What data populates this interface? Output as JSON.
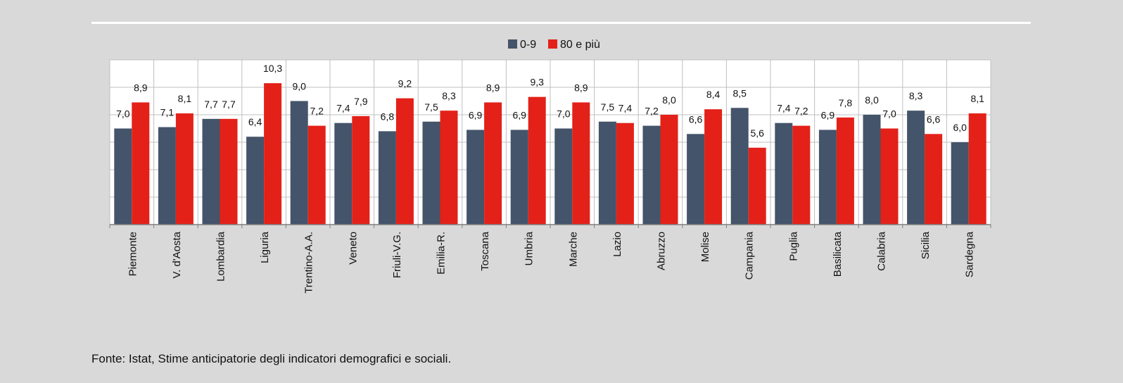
{
  "source_note": "Fonte: Istat, Stime anticipatorie degli indicatori demografici e sociali.",
  "chart_data": {
    "type": "bar",
    "title": "",
    "xlabel": "",
    "ylabel": "",
    "ylim": [
      0,
      12
    ],
    "grid": true,
    "legend_position": "top-center",
    "categories": [
      "Piemonte",
      "V. d'Aosta",
      "Lombardia",
      "Liguria",
      "Trentino-A.A.",
      "Veneto",
      "Friuli-V.G.",
      "Emilia-R.",
      "Toscana",
      "Umbria",
      "Marche",
      "Lazio",
      "Abruzzo",
      "Molise",
      "Campania",
      "Puglia",
      "Basilicata",
      "Calabria",
      "Sicilia",
      "Sardegna"
    ],
    "series": [
      {
        "name": "0-9",
        "color": "#44546a",
        "values": [
          7.0,
          7.1,
          7.7,
          6.4,
          9.0,
          7.4,
          6.8,
          7.5,
          6.9,
          6.9,
          7.0,
          7.5,
          7.2,
          6.6,
          8.5,
          7.4,
          6.9,
          8.0,
          8.3,
          6.0
        ]
      },
      {
        "name": "80 e più",
        "color": "#e32119",
        "values": [
          8.9,
          8.1,
          7.7,
          10.3,
          7.2,
          7.9,
          9.2,
          8.3,
          8.9,
          9.3,
          8.9,
          7.4,
          8.0,
          8.4,
          5.6,
          7.2,
          7.8,
          7.0,
          6.6,
          8.1
        ]
      }
    ]
  }
}
